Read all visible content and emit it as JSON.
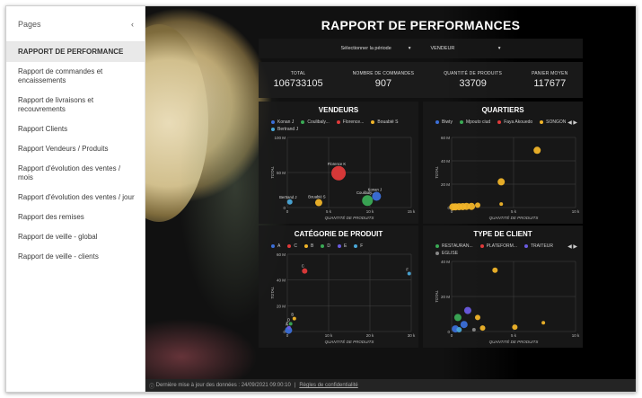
{
  "sidebar": {
    "header": "Pages",
    "items": [
      {
        "label": "RAPPORT DE PERFORMANCE",
        "active": true
      },
      {
        "label": "Rapport de commandes et encaissements"
      },
      {
        "label": "Rapport de livraisons et recouvrements"
      },
      {
        "label": "Rapport Clients"
      },
      {
        "label": "Rapport Vendeurs / Produits"
      },
      {
        "label": "Rapport d'évolution des ventes / mois"
      },
      {
        "label": "Rapport d'évolution des ventes / jour"
      },
      {
        "label": "Rapport des remises"
      },
      {
        "label": "Rapport de veille - global"
      },
      {
        "label": "Rapport de veille - clients"
      }
    ]
  },
  "report": {
    "title": "RAPPORT DE PERFORMANCES",
    "filters": {
      "period": "Sélectionner la période",
      "seller": "VENDEUR"
    },
    "kpis": [
      {
        "label": "TOTAL",
        "value": "106733105"
      },
      {
        "label": "NOMBRE DE COMMANDES",
        "value": "907"
      },
      {
        "label": "QUANTITÉ DE PRODUITS",
        "value": "33709"
      },
      {
        "label": "PANIER MOYEN",
        "value": "117677"
      }
    ]
  },
  "footer": {
    "update": "Dernière mise à jour des données : 24/09/2021 09:00:10",
    "separator": "|",
    "privacy": "Règles de confidentialité"
  },
  "icons": {
    "collapse": "chevron-left-icon",
    "dropdown": "caret-down-icon",
    "info": "info-icon",
    "pager": "pager-arrows-icon"
  },
  "chart_data": [
    {
      "type": "scatter",
      "title": "VENDEURS",
      "xlabel": "QUANTITÉ DE PRODUITS",
      "ylabel": "TOTAL",
      "xlim": [
        0,
        15000
      ],
      "ylim": [
        0,
        100000000
      ],
      "xticks": [
        "0",
        "5 k",
        "10 k",
        "15 k"
      ],
      "yticks": [
        "0",
        "50 M",
        "100 M"
      ],
      "series": [
        {
          "name": "Konan J",
          "color": "#3b6fd8",
          "points": [
            {
              "x": 10800,
              "y": 16000000,
              "size": 5,
              "label": "Konan J"
            }
          ]
        },
        {
          "name": "Coulibaly...",
          "color": "#3aaa55",
          "points": [
            {
              "x": 9700,
              "y": 10000000,
              "size": 6,
              "label": "Coulibaly..."
            }
          ]
        },
        {
          "name": "Florence...",
          "color": "#e03a3a",
          "points": [
            {
              "x": 6200,
              "y": 49000000,
              "size": 8,
              "label": "Florence K"
            }
          ]
        },
        {
          "name": "Bouabié S",
          "color": "#f0b429",
          "points": [
            {
              "x": 3800,
              "y": 7000000,
              "size": 4,
              "label": "Bouabié S"
            }
          ]
        },
        {
          "name": "Bertrand J",
          "color": "#4aa8d8",
          "points": [
            {
              "x": 300,
              "y": 8000000,
              "size": 3,
              "label": "Bertrand J"
            }
          ]
        }
      ]
    },
    {
      "type": "scatter",
      "title": "QUARTIERS",
      "xlabel": "QUANTITÉ DE PRODUITS",
      "ylabel": "TOTAL",
      "xlim": [
        0,
        10000
      ],
      "ylim": [
        0,
        60000000
      ],
      "xticks": [
        "0",
        "5 k",
        "10 k"
      ],
      "yticks": [
        "0",
        "20 M",
        "40 M",
        "60 M"
      ],
      "legend": [
        {
          "name": "Biwty",
          "color": "#3b6fd8"
        },
        {
          "name": "Mpouto ciud",
          "color": "#3aaa55"
        },
        {
          "name": "Faya Akouedo",
          "color": "#e03a3a"
        },
        {
          "name": "SONGON",
          "color": "#f0b429"
        }
      ],
      "points": [
        {
          "x": 6900,
          "y": 49000000,
          "size": 4
        },
        {
          "x": 4000,
          "y": 22000000,
          "size": 4
        },
        {
          "x": 4000,
          "y": 3000000,
          "size": 2
        },
        {
          "x": 2100,
          "y": 2000000,
          "size": 3
        },
        {
          "x": 1600,
          "y": 1000000,
          "size": 4
        },
        {
          "x": 1200,
          "y": 1000000,
          "size": 4
        },
        {
          "x": 900,
          "y": 800000,
          "size": 4
        },
        {
          "x": 600,
          "y": 700000,
          "size": 4
        },
        {
          "x": 300,
          "y": 600000,
          "size": 4
        },
        {
          "x": 100,
          "y": 500000,
          "size": 4
        }
      ],
      "point_color": "#f0b429"
    },
    {
      "type": "scatter",
      "title": "CATÉGORIE DE PRODUIT",
      "xlabel": "QUANTITÉ DE PRODUITS",
      "ylabel": "TOTAL",
      "xlim": [
        0,
        30000
      ],
      "ylim": [
        0,
        60000000
      ],
      "xticks": [
        "0",
        "10 k",
        "20 k",
        "30 k"
      ],
      "yticks": [
        "0",
        "20 M",
        "40 M",
        "60 M"
      ],
      "series": [
        {
          "name": "A",
          "color": "#3b6fd8",
          "points": [
            {
              "x": 300,
              "y": 1000000,
              "size": 4,
              "label": "A"
            }
          ]
        },
        {
          "name": "C",
          "color": "#e03a3a",
          "points": [
            {
              "x": 4200,
              "y": 47000000,
              "size": 3,
              "label": "C"
            }
          ]
        },
        {
          "name": "B",
          "color": "#f0b429",
          "points": [
            {
              "x": 1700,
              "y": 10000000,
              "size": 2,
              "label": "B"
            }
          ]
        },
        {
          "name": "D",
          "color": "#3aaa55",
          "points": [
            {
              "x": 800,
              "y": 6000000,
              "size": 2,
              "label": "D"
            }
          ]
        },
        {
          "name": "E",
          "color": "#6a5be0",
          "points": [
            {
              "x": 400,
              "y": 3000000,
              "size": 2,
              "label": "E"
            }
          ]
        },
        {
          "name": "F",
          "color": "#4aa8d8",
          "points": [
            {
              "x": 29500,
              "y": 45000000,
              "size": 2,
              "label": "F"
            }
          ]
        }
      ]
    },
    {
      "type": "scatter",
      "title": "TYPE DE CLIENT",
      "xlabel": "QUANTITÉ DE PRODUITS",
      "ylabel": "TOTAL",
      "xlim": [
        0,
        10000
      ],
      "ylim": [
        0,
        40000000
      ],
      "xticks": [
        "0",
        "5 k",
        "10 k"
      ],
      "yticks": [
        "0",
        "20 M",
        "40 M"
      ],
      "legend": [
        {
          "name": "RESTAURAN...",
          "color": "#3aaa55"
        },
        {
          "name": "PLATEFORM...",
          "color": "#e03a3a"
        },
        {
          "name": "TRAITEUR",
          "color": "#6a5be0"
        },
        {
          "name": "EGLISE",
          "color": "#888888"
        }
      ],
      "points": [
        {
          "x": 3500,
          "y": 35000000,
          "color": "#f0b429",
          "size": 3
        },
        {
          "x": 1300,
          "y": 12000000,
          "color": "#6a5be0",
          "size": 4
        },
        {
          "x": 500,
          "y": 8000000,
          "color": "#3aaa55",
          "size": 4
        },
        {
          "x": 2100,
          "y": 8000000,
          "color": "#f0b429",
          "size": 3
        },
        {
          "x": 1000,
          "y": 4000000,
          "color": "#3b6fd8",
          "size": 4
        },
        {
          "x": 2500,
          "y": 2000000,
          "color": "#f0b429",
          "size": 3
        },
        {
          "x": 5100,
          "y": 2500000,
          "color": "#f0b429",
          "size": 3
        },
        {
          "x": 7400,
          "y": 5000000,
          "color": "#f0b429",
          "size": 2
        },
        {
          "x": 300,
          "y": 1500000,
          "color": "#3b6fd8",
          "size": 4
        },
        {
          "x": 600,
          "y": 1000000,
          "color": "#4aa8d8",
          "size": 3
        },
        {
          "x": 1800,
          "y": 1000000,
          "color": "#888888",
          "size": 2
        }
      ]
    }
  ]
}
